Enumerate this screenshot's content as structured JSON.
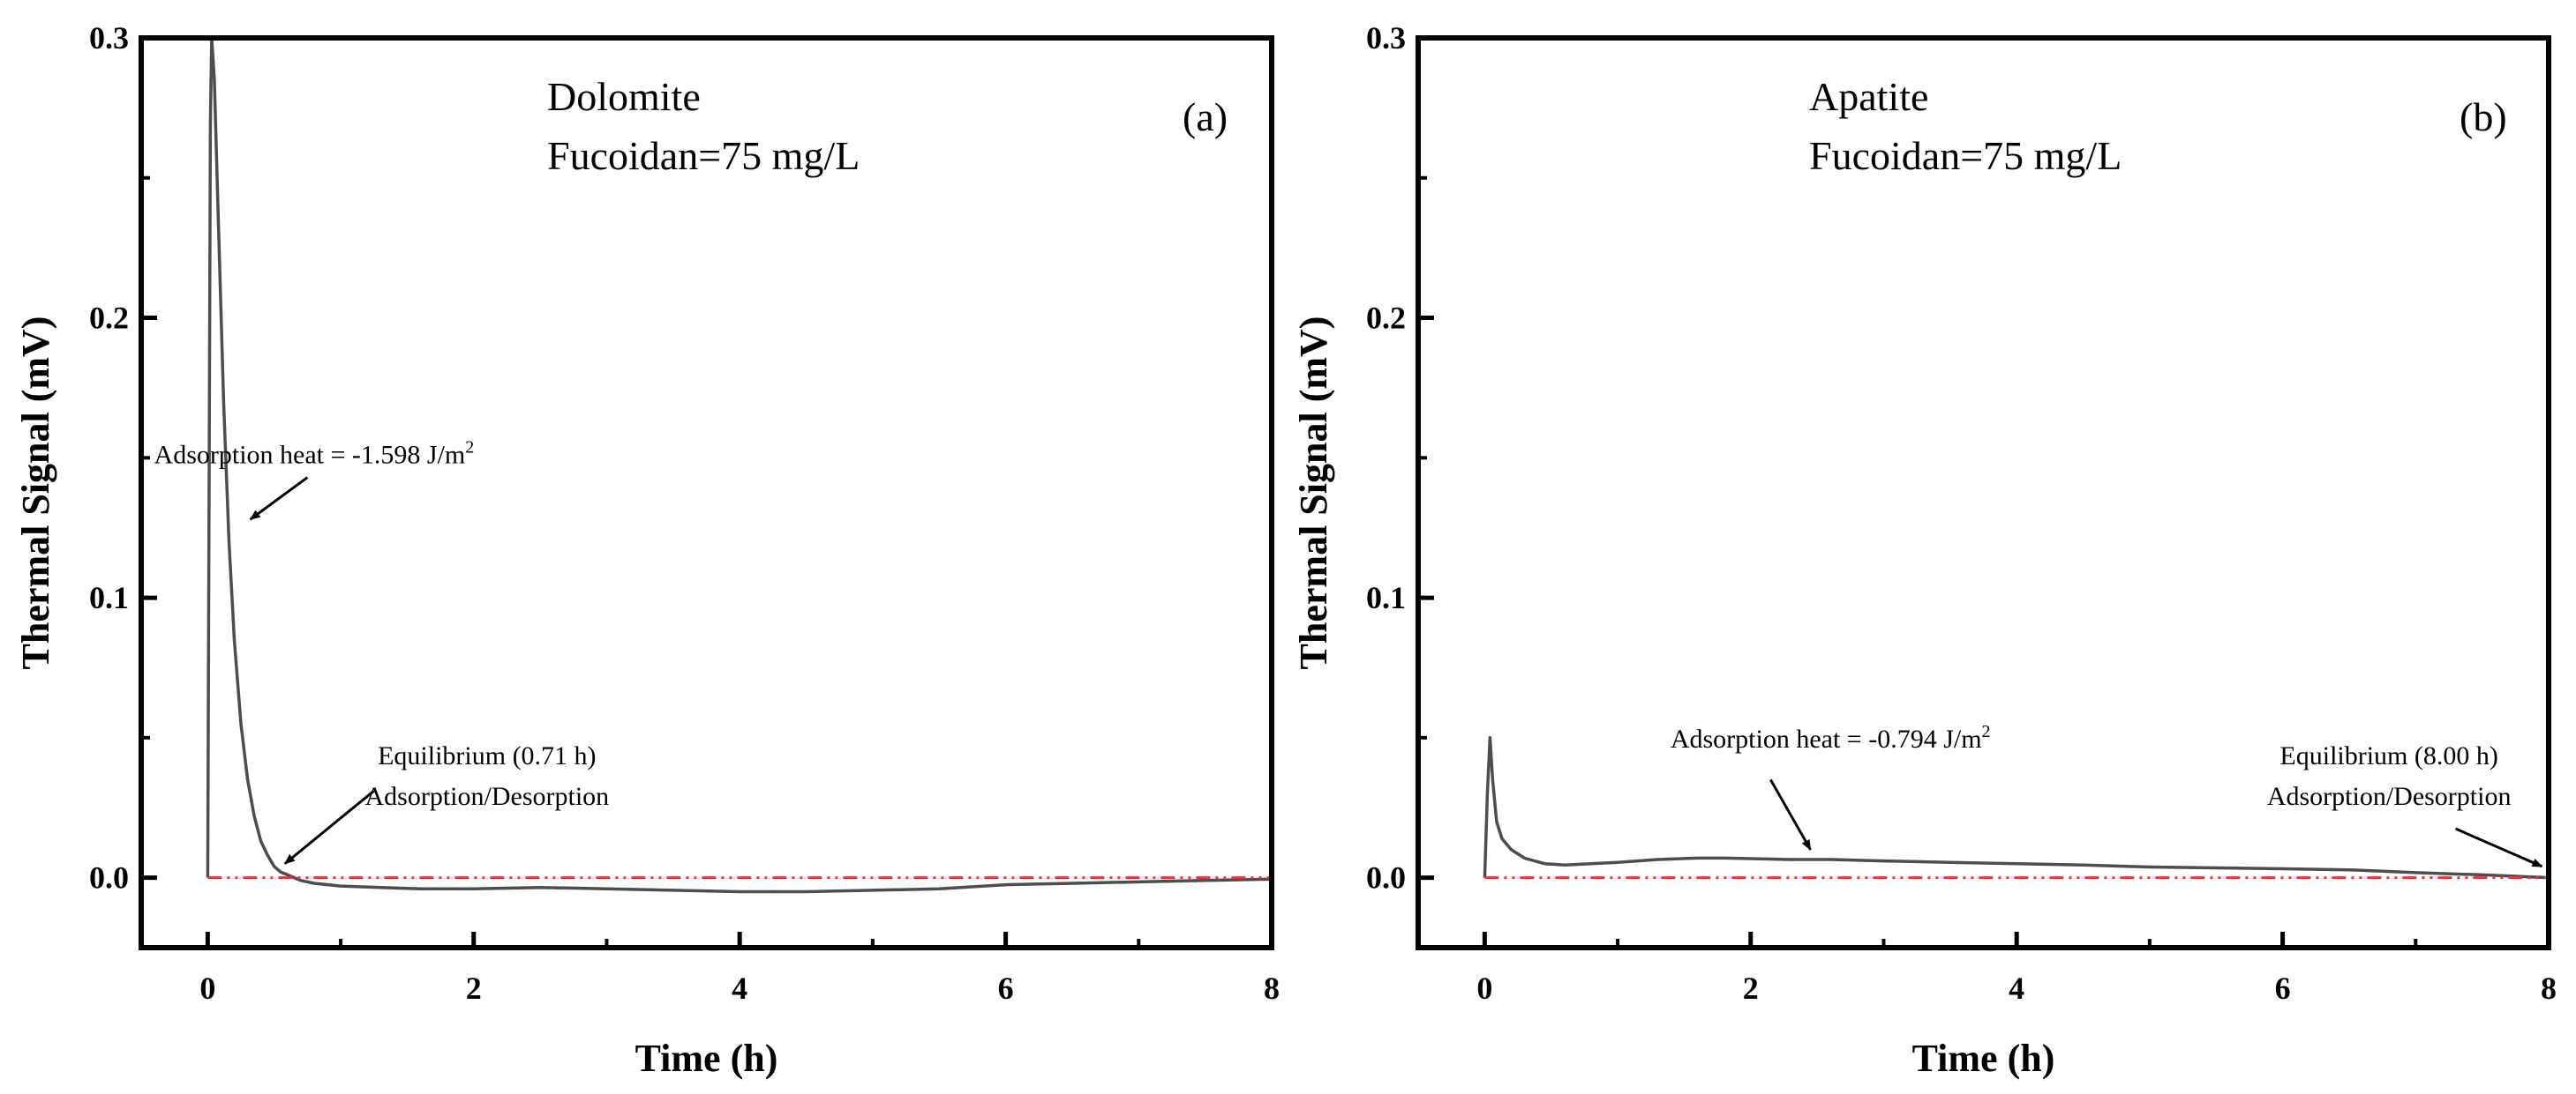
{
  "chart_data": [
    {
      "type": "line",
      "panel_label": "(a)",
      "xlabel": "Time (h)",
      "ylabel": "Thermal Signal (mV)",
      "xlim": [
        -0.5,
        8
      ],
      "ylim": [
        -0.025,
        0.3
      ],
      "xticks": [
        0,
        2,
        4,
        6,
        8
      ],
      "xtick_labels": [
        "0",
        "2",
        "4",
        "6",
        "8"
      ],
      "yticks": [
        0.0,
        0.1,
        0.2,
        0.3
      ],
      "ytick_labels": [
        "0.0",
        "0.1",
        "0.2",
        "0.3"
      ],
      "mineral": "Dolomite",
      "concentration": "Fucoidan=75 mg/L",
      "series": [
        {
          "name": "thermal signal",
          "color": "#4d4d4d",
          "x": [
            0.0,
            0.02,
            0.03,
            0.05,
            0.08,
            0.12,
            0.16,
            0.2,
            0.25,
            0.3,
            0.35,
            0.4,
            0.45,
            0.5,
            0.55,
            0.6,
            0.7,
            0.8,
            1.0,
            1.3,
            1.6,
            2.0,
            2.5,
            3.0,
            3.5,
            4.0,
            4.5,
            5.0,
            5.5,
            6.0,
            6.5,
            7.0,
            7.5,
            8.0
          ],
          "y": [
            0.0,
            0.27,
            0.3,
            0.285,
            0.235,
            0.17,
            0.12,
            0.085,
            0.055,
            0.035,
            0.022,
            0.013,
            0.008,
            0.004,
            0.002,
            0.001,
            -0.001,
            -0.002,
            -0.003,
            -0.0035,
            -0.004,
            -0.004,
            -0.0035,
            -0.004,
            -0.0045,
            -0.005,
            -0.005,
            -0.0045,
            -0.004,
            -0.0025,
            -0.002,
            -0.0015,
            -0.001,
            -0.0005
          ]
        },
        {
          "name": "baseline",
          "color": "#ff2a2a",
          "x": [
            0.0,
            8.0
          ],
          "y": [
            0.0,
            0.0
          ]
        }
      ],
      "annotations": [
        {
          "text": "Adsorption heat = -1.598 J/m",
          "sup": "2",
          "x": 0.8,
          "y": 0.148,
          "arrow_from": [
            0.75,
            0.143
          ],
          "arrow_to": [
            0.32,
            0.128
          ]
        },
        {
          "text": "Equilibrium (0.71 h)",
          "x": 2.1,
          "y": 0.0405,
          "arrow_from": [
            1.25,
            0.031
          ],
          "arrow_to": [
            0.58,
            0.005
          ]
        },
        {
          "text": "Adsorption/Desorption",
          "x": 2.1,
          "y": 0.026
        }
      ]
    },
    {
      "type": "line",
      "panel_label": "(b)",
      "xlabel": "Time (h)",
      "ylabel": "Thermal Signal (mV)",
      "xlim": [
        -0.5,
        8
      ],
      "ylim": [
        -0.025,
        0.3
      ],
      "xticks": [
        0,
        2,
        4,
        6,
        8
      ],
      "xtick_labels": [
        "0",
        "2",
        "4",
        "6",
        "8"
      ],
      "yticks": [
        0.0,
        0.1,
        0.2,
        0.3
      ],
      "ytick_labels": [
        "0.0",
        "0.1",
        "0.2",
        "0.3"
      ],
      "mineral": "Apatite",
      "concentration": "Fucoidan=75 mg/L",
      "series": [
        {
          "name": "thermal signal",
          "color": "#4d4d4d",
          "x": [
            0.0,
            0.02,
            0.04,
            0.06,
            0.09,
            0.13,
            0.2,
            0.3,
            0.45,
            0.6,
            0.8,
            1.0,
            1.3,
            1.6,
            1.8,
            2.0,
            2.3,
            2.6,
            3.0,
            3.5,
            4.0,
            4.5,
            5.0,
            5.5,
            6.0,
            6.5,
            7.0,
            7.5,
            8.0
          ],
          "y": [
            0.0,
            0.03,
            0.05,
            0.035,
            0.02,
            0.014,
            0.01,
            0.007,
            0.005,
            0.0045,
            0.005,
            0.0055,
            0.0065,
            0.007,
            0.007,
            0.0068,
            0.0065,
            0.0065,
            0.006,
            0.0055,
            0.005,
            0.0045,
            0.0038,
            0.0035,
            0.0032,
            0.0028,
            0.0018,
            0.001,
            0.0
          ]
        },
        {
          "name": "baseline",
          "color": "#ff2a2a",
          "x": [
            0.0,
            8.0
          ],
          "y": [
            0.0,
            0.0
          ]
        }
      ],
      "annotations": [
        {
          "text": "Adsorption heat = -0.794 J/m",
          "sup": "2",
          "x": 2.6,
          "y": 0.0465,
          "arrow_from": [
            2.15,
            0.035
          ],
          "arrow_to": [
            2.45,
            0.01
          ]
        },
        {
          "text": "Equilibrium (8.00 h)",
          "x": 6.8,
          "y": 0.0405,
          "arrow_from": [
            7.3,
            0.0175
          ],
          "arrow_to": [
            7.95,
            0.004
          ]
        },
        {
          "text": "Adsorption/Desorption",
          "x": 6.8,
          "y": 0.026
        }
      ]
    }
  ]
}
